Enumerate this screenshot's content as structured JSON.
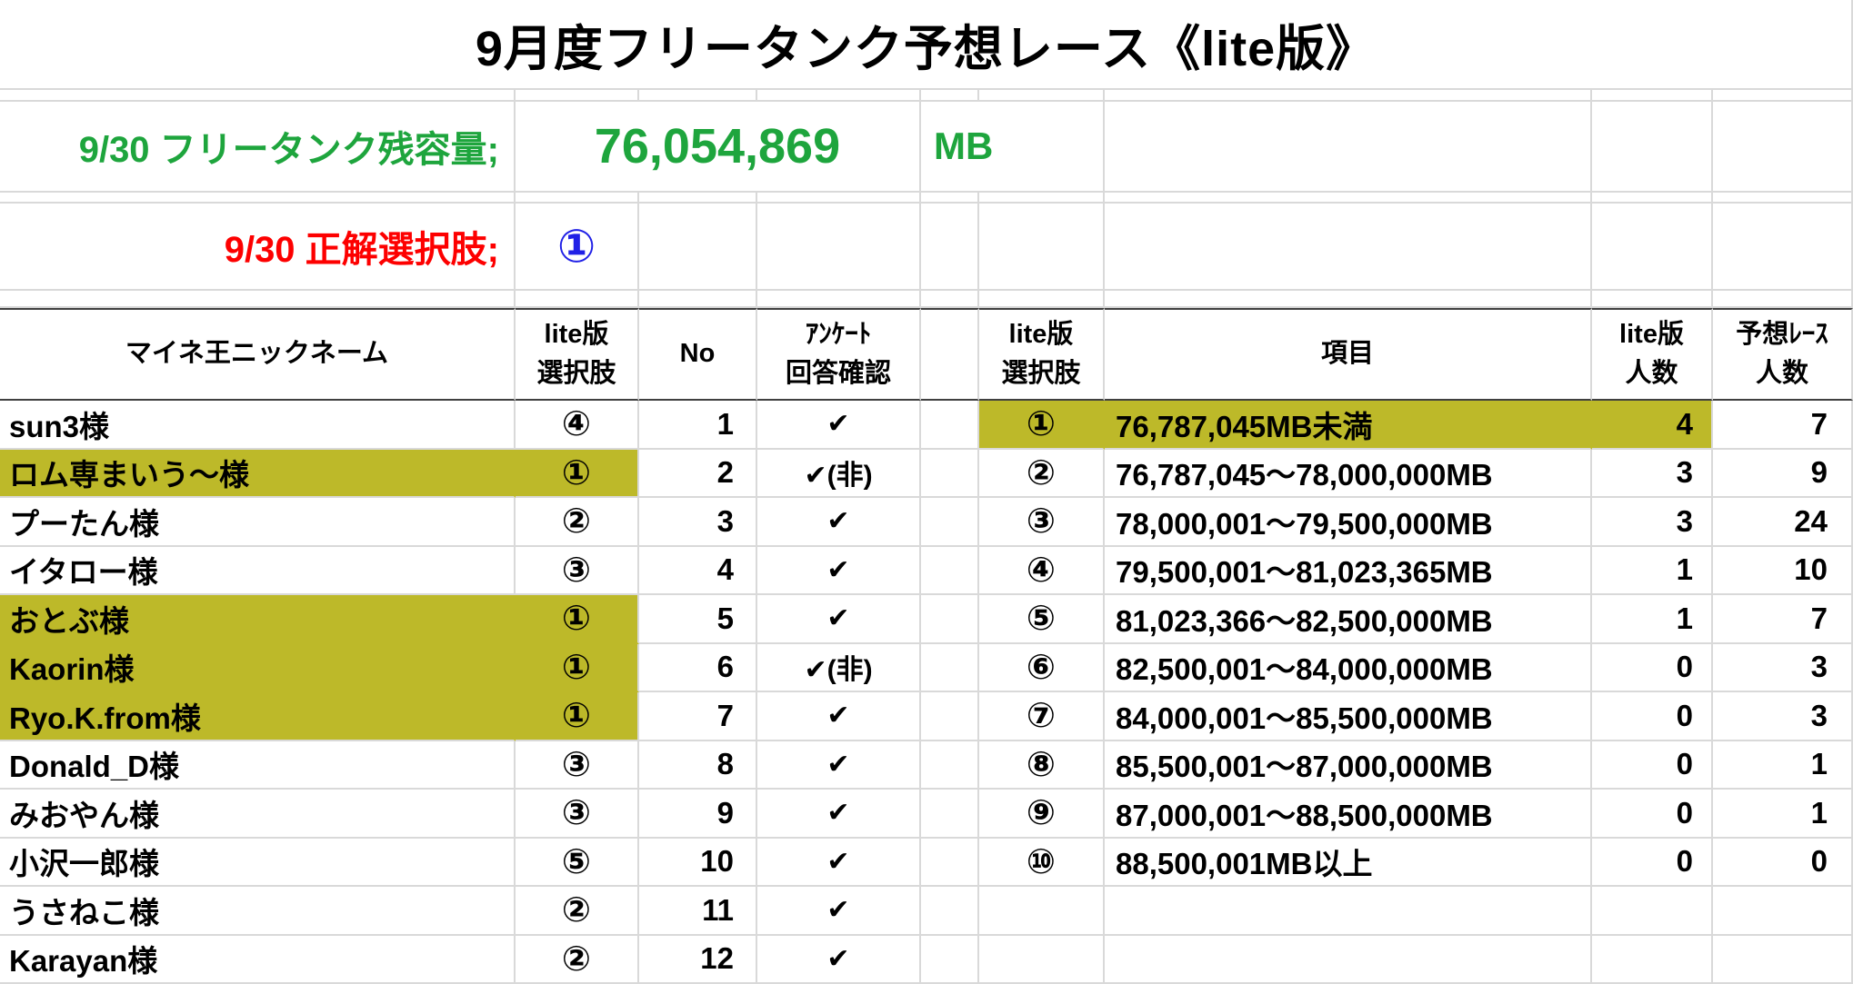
{
  "title": "9月度フリータンク予想レース《lite版》",
  "tank_row": {
    "label": "9/30 フリータンク残容量;",
    "value": "76,054,869",
    "unit": "MB"
  },
  "answer_row": {
    "label": "9/30 正解選択肢;",
    "value": "①"
  },
  "left_table": {
    "headers": {
      "nickname": "マイネ王ニックネーム",
      "choice": "lite版\n選択肢",
      "no": "No",
      "survey": "ｱﾝｹｰﾄ\n回答確認"
    },
    "rows": [
      {
        "nickname": "sun3様",
        "choice": "④",
        "no": "1",
        "survey": "✔",
        "highlight": false
      },
      {
        "nickname": "ロム専まいう～様",
        "choice": "①",
        "no": "2",
        "survey": "✔(非)",
        "highlight": true
      },
      {
        "nickname": "プーたん様",
        "choice": "②",
        "no": "3",
        "survey": "✔",
        "highlight": false
      },
      {
        "nickname": "イタロー様",
        "choice": "③",
        "no": "4",
        "survey": "✔",
        "highlight": false
      },
      {
        "nickname": "おとぶ様",
        "choice": "①",
        "no": "5",
        "survey": "✔",
        "highlight": true
      },
      {
        "nickname": "Kaorin様",
        "choice": "①",
        "no": "6",
        "survey": "✔(非)",
        "highlight": true
      },
      {
        "nickname": "Ryo.K.from様",
        "choice": "①",
        "no": "7",
        "survey": "✔",
        "highlight": true
      },
      {
        "nickname": "Donald_D様",
        "choice": "③",
        "no": "8",
        "survey": "✔",
        "highlight": false
      },
      {
        "nickname": "みおやん様",
        "choice": "③",
        "no": "9",
        "survey": "✔",
        "highlight": false
      },
      {
        "nickname": "小沢一郎様",
        "choice": "⑤",
        "no": "10",
        "survey": "✔",
        "highlight": false
      },
      {
        "nickname": "うさねこ様",
        "choice": "②",
        "no": "11",
        "survey": "✔",
        "highlight": false
      },
      {
        "nickname": "Karayan様",
        "choice": "②",
        "no": "12",
        "survey": "✔",
        "highlight": false
      }
    ]
  },
  "right_table": {
    "headers": {
      "choice": "lite版\n選択肢",
      "item": "項目",
      "lite_count": "lite版\n人数",
      "race_count": "予想ﾚｰｽ\n人数"
    },
    "rows": [
      {
        "choice": "①",
        "item": "76,787,045MB未満",
        "lite_count": "4",
        "race_count": "7",
        "highlight": true
      },
      {
        "choice": "②",
        "item": "76,787,045～78,000,000MB",
        "lite_count": "3",
        "race_count": "9",
        "highlight": false
      },
      {
        "choice": "③",
        "item": "78,000,001～79,500,000MB",
        "lite_count": "3",
        "race_count": "24",
        "highlight": false
      },
      {
        "choice": "④",
        "item": "79,500,001～81,023,365MB",
        "lite_count": "1",
        "race_count": "10",
        "highlight": false
      },
      {
        "choice": "⑤",
        "item": "81,023,366～82,500,000MB",
        "lite_count": "1",
        "race_count": "7",
        "highlight": false
      },
      {
        "choice": "⑥",
        "item": "82,500,001～84,000,000MB",
        "lite_count": "0",
        "race_count": "3",
        "highlight": false
      },
      {
        "choice": "⑦",
        "item": "84,000,001～85,500,000MB",
        "lite_count": "0",
        "race_count": "3",
        "highlight": false
      },
      {
        "choice": "⑧",
        "item": "85,500,001～87,000,000MB",
        "lite_count": "0",
        "race_count": "1",
        "highlight": false
      },
      {
        "choice": "⑨",
        "item": "87,000,001～88,500,000MB",
        "lite_count": "0",
        "race_count": "1",
        "highlight": false
      },
      {
        "choice": "⑩",
        "item": "88,500,001MB以上",
        "lite_count": "0",
        "race_count": "0",
        "highlight": false
      },
      {
        "choice": "",
        "item": "",
        "lite_count": "",
        "race_count": "",
        "highlight": false
      },
      {
        "choice": "",
        "item": "",
        "lite_count": "",
        "race_count": "",
        "highlight": false
      }
    ]
  },
  "colors": {
    "green": "#1ea53d",
    "red": "#fd0000",
    "blue": "#2020e6",
    "highlight": "#bdb929",
    "grid": "#d9d9d9",
    "header_border": "#404040",
    "text": "#000000"
  }
}
